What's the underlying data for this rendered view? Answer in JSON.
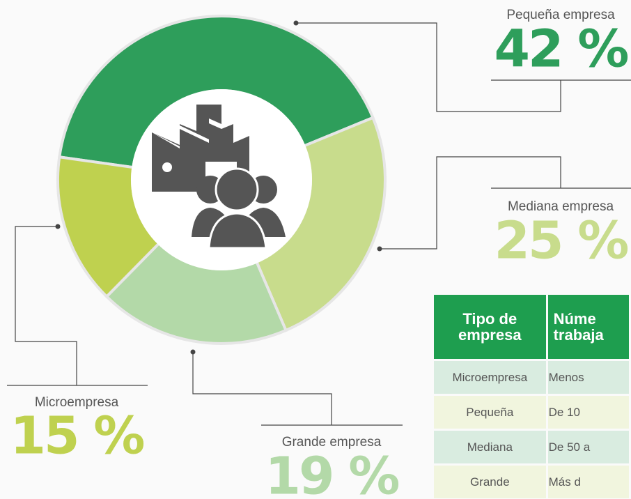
{
  "chart_data": {
    "type": "donut",
    "categories": [
      "Pequeña empresa",
      "Mediana empresa",
      "Grande empresa",
      "Microempresa"
    ],
    "values": [
      42,
      25,
      19,
      15
    ],
    "value_labels": [
      "42 %",
      "25 %",
      "19 %",
      "15 %"
    ],
    "colors": [
      "#2e9e5b",
      "#c8dc8c",
      "#b3d9a8",
      "#bfd14f"
    ]
  },
  "table": {
    "header": [
      "Tipo de empresa",
      "Núme trabaja"
    ],
    "rows": [
      [
        "Microempresa",
        "Menos"
      ],
      [
        "Pequeña",
        "De 10"
      ],
      [
        "Mediana",
        "De 50 a"
      ],
      [
        "Grande",
        "Más d"
      ]
    ]
  }
}
